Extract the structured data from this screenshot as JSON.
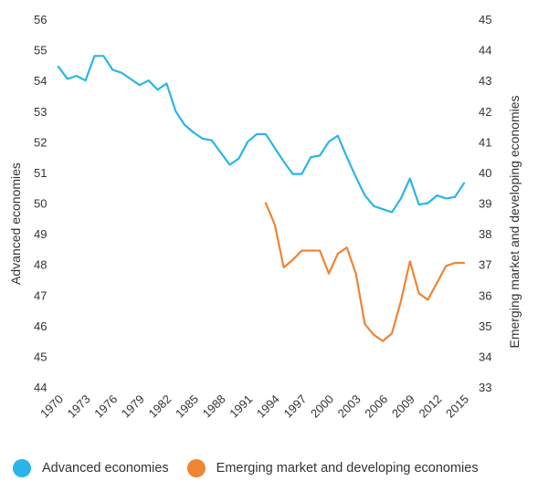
{
  "chart_data": {
    "type": "line",
    "x": [
      1970,
      1971,
      1972,
      1973,
      1974,
      1975,
      1976,
      1977,
      1978,
      1979,
      1980,
      1981,
      1982,
      1983,
      1984,
      1985,
      1986,
      1987,
      1988,
      1989,
      1990,
      1991,
      1992,
      1993,
      1994,
      1995,
      1996,
      1997,
      1998,
      1999,
      2000,
      2001,
      2002,
      2003,
      2004,
      2005,
      2006,
      2007,
      2008,
      2009,
      2010,
      2011,
      2012,
      2013,
      2014,
      2015
    ],
    "x_ticks": [
      "1970",
      "1973",
      "1976",
      "1979",
      "1982",
      "1985",
      "1988",
      "1991",
      "1994",
      "1997",
      "2000",
      "2003",
      "2006",
      "2009",
      "2012",
      "2015"
    ],
    "y_left": {
      "label": "Advanced economies",
      "range": [
        44,
        56
      ],
      "ticks": [
        "44",
        "45",
        "46",
        "47",
        "48",
        "49",
        "50",
        "51",
        "52",
        "53",
        "54",
        "55",
        "56"
      ]
    },
    "y_right": {
      "label": "Emerging market and developing economies",
      "range": [
        33,
        45
      ],
      "ticks": [
        "33",
        "34",
        "35",
        "36",
        "37",
        "38",
        "39",
        "40",
        "41",
        "42",
        "43",
        "44",
        "45"
      ]
    },
    "series": [
      {
        "name": "Advanced economies",
        "axis": "left",
        "color": "#29b5e8",
        "values": [
          54.45,
          54.05,
          54.15,
          54.0,
          54.8,
          54.8,
          54.35,
          54.25,
          54.05,
          53.85,
          54.0,
          53.7,
          53.9,
          53.0,
          52.55,
          52.3,
          52.1,
          52.05,
          51.65,
          51.25,
          51.45,
          52.0,
          52.25,
          52.25,
          51.8,
          51.35,
          50.95,
          50.95,
          51.5,
          51.55,
          52.0,
          52.2,
          51.5,
          50.85,
          50.25,
          49.9,
          49.8,
          49.7,
          50.15,
          50.8,
          49.95,
          50.0,
          50.25,
          50.15,
          50.2,
          50.65
        ]
      },
      {
        "name": "Emerging market and developing economies",
        "axis": "right",
        "color": "#ef8433",
        "values": [
          null,
          null,
          null,
          null,
          null,
          null,
          null,
          null,
          null,
          null,
          null,
          null,
          null,
          null,
          null,
          null,
          null,
          null,
          null,
          null,
          null,
          null,
          null,
          39.0,
          38.3,
          36.9,
          37.15,
          37.45,
          37.45,
          37.45,
          36.7,
          37.35,
          37.55,
          36.7,
          35.05,
          34.7,
          34.5,
          34.75,
          35.8,
          37.1,
          36.05,
          35.85,
          36.4,
          36.95,
          37.05,
          37.05
        ]
      }
    ],
    "legend_position": "bottom",
    "grid": false
  },
  "legend": {
    "items": [
      {
        "label": "Advanced economies",
        "color": "#29b5e8"
      },
      {
        "label": "Emerging market and developing economies",
        "color": "#ef8433"
      }
    ]
  }
}
